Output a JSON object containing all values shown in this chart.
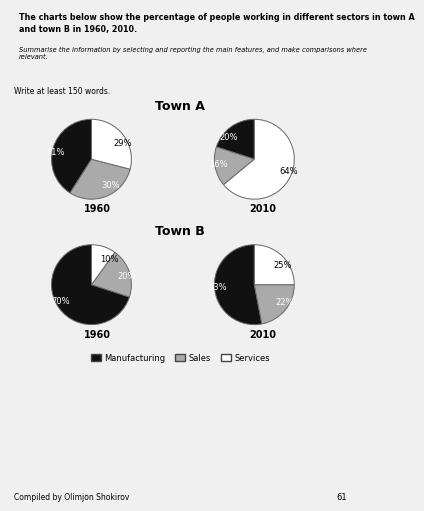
{
  "title_text": "The charts below show the percentage of people working in different sectors in town A\nand town B in 1960, 2010.",
  "subtitle_text": "Summarise the information by selecting and reporting the main features, and make comparisons where\nrelevant.",
  "write_prompt": "Write at least 150 words.",
  "town_a_label": "Town A",
  "town_b_label": "Town B",
  "year_labels": [
    "1960",
    "2010"
  ],
  "sector_labels": [
    "Manufacturing",
    "Sales",
    "Services"
  ],
  "colors": [
    "#111111",
    "#aaaaaa",
    "#ffffff"
  ],
  "edge_color": "#666666",
  "town_a_1960": [
    41,
    30,
    29
  ],
  "town_a_2010": [
    20,
    16,
    64
  ],
  "town_b_1960": [
    70,
    20,
    10
  ],
  "town_b_2010": [
    53,
    22,
    25
  ],
  "town_a_1960_labels": [
    "41%",
    "30%",
    "29%"
  ],
  "town_a_2010_labels": [
    "20%",
    "16%",
    "64%"
  ],
  "town_b_1960_labels": [
    "70%",
    "20%",
    "10%"
  ],
  "town_b_2010_labels": [
    "53%",
    "22%",
    "25%"
  ],
  "footer_text": "Compiled by Olimjon Shokirov",
  "page_number": "61",
  "background_color": "#f0f0f0",
  "box_bg": "#ffffff",
  "box_border": "#bbbbbb"
}
